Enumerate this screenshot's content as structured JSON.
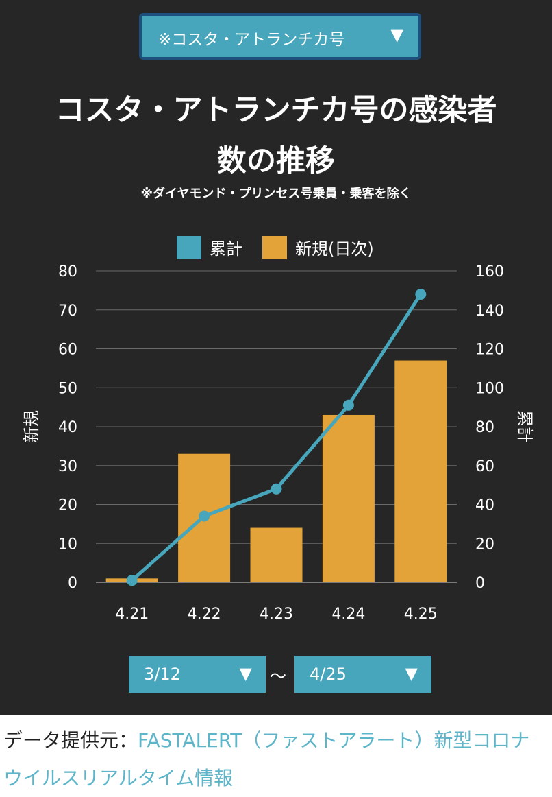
{
  "selector": {
    "ship_label": "※コスタ・アトランチカ号",
    "arrow": "▼"
  },
  "title_line1": "コスタ・アトランチカ号の感染者",
  "title_line2": "数の推移",
  "subtitle": "※ダイヤモンド・プリンセス号乗員・乗客を除く",
  "colors": {
    "panel_bg": "#262626",
    "cumulative": "#47a6bb",
    "daily": "#e3a339"
  },
  "chart_data": {
    "type": "bar",
    "categories": [
      "4.21",
      "4.22",
      "4.23",
      "4.24",
      "4.25"
    ],
    "series": [
      {
        "name": "累計",
        "type": "line",
        "axis": "right",
        "values": [
          1,
          34,
          48,
          91,
          148
        ]
      },
      {
        "name": "新規(日次)",
        "type": "bar",
        "axis": "left",
        "values": [
          1,
          33,
          14,
          43,
          57
        ]
      }
    ],
    "ylabel_left": "新規",
    "ylabel_right": "累計",
    "ylim_left": [
      0,
      80
    ],
    "ylim_right": [
      0,
      160
    ],
    "yticks_left": [
      "0",
      "10",
      "20",
      "30",
      "40",
      "50",
      "60",
      "70",
      "80"
    ],
    "yticks_right": [
      "0",
      "20",
      "40",
      "60",
      "80",
      "100",
      "120",
      "140",
      "160"
    ],
    "legend_position": "top-center",
    "grid": true
  },
  "range": {
    "start": "3/12",
    "end": "4/25",
    "separator": "〜",
    "arrow": "▼"
  },
  "footer": {
    "prefix": "データ提供元：",
    "link_text": "FASTALERT（ファストアラート）新型コロナウイルスリアルタイム情報"
  }
}
